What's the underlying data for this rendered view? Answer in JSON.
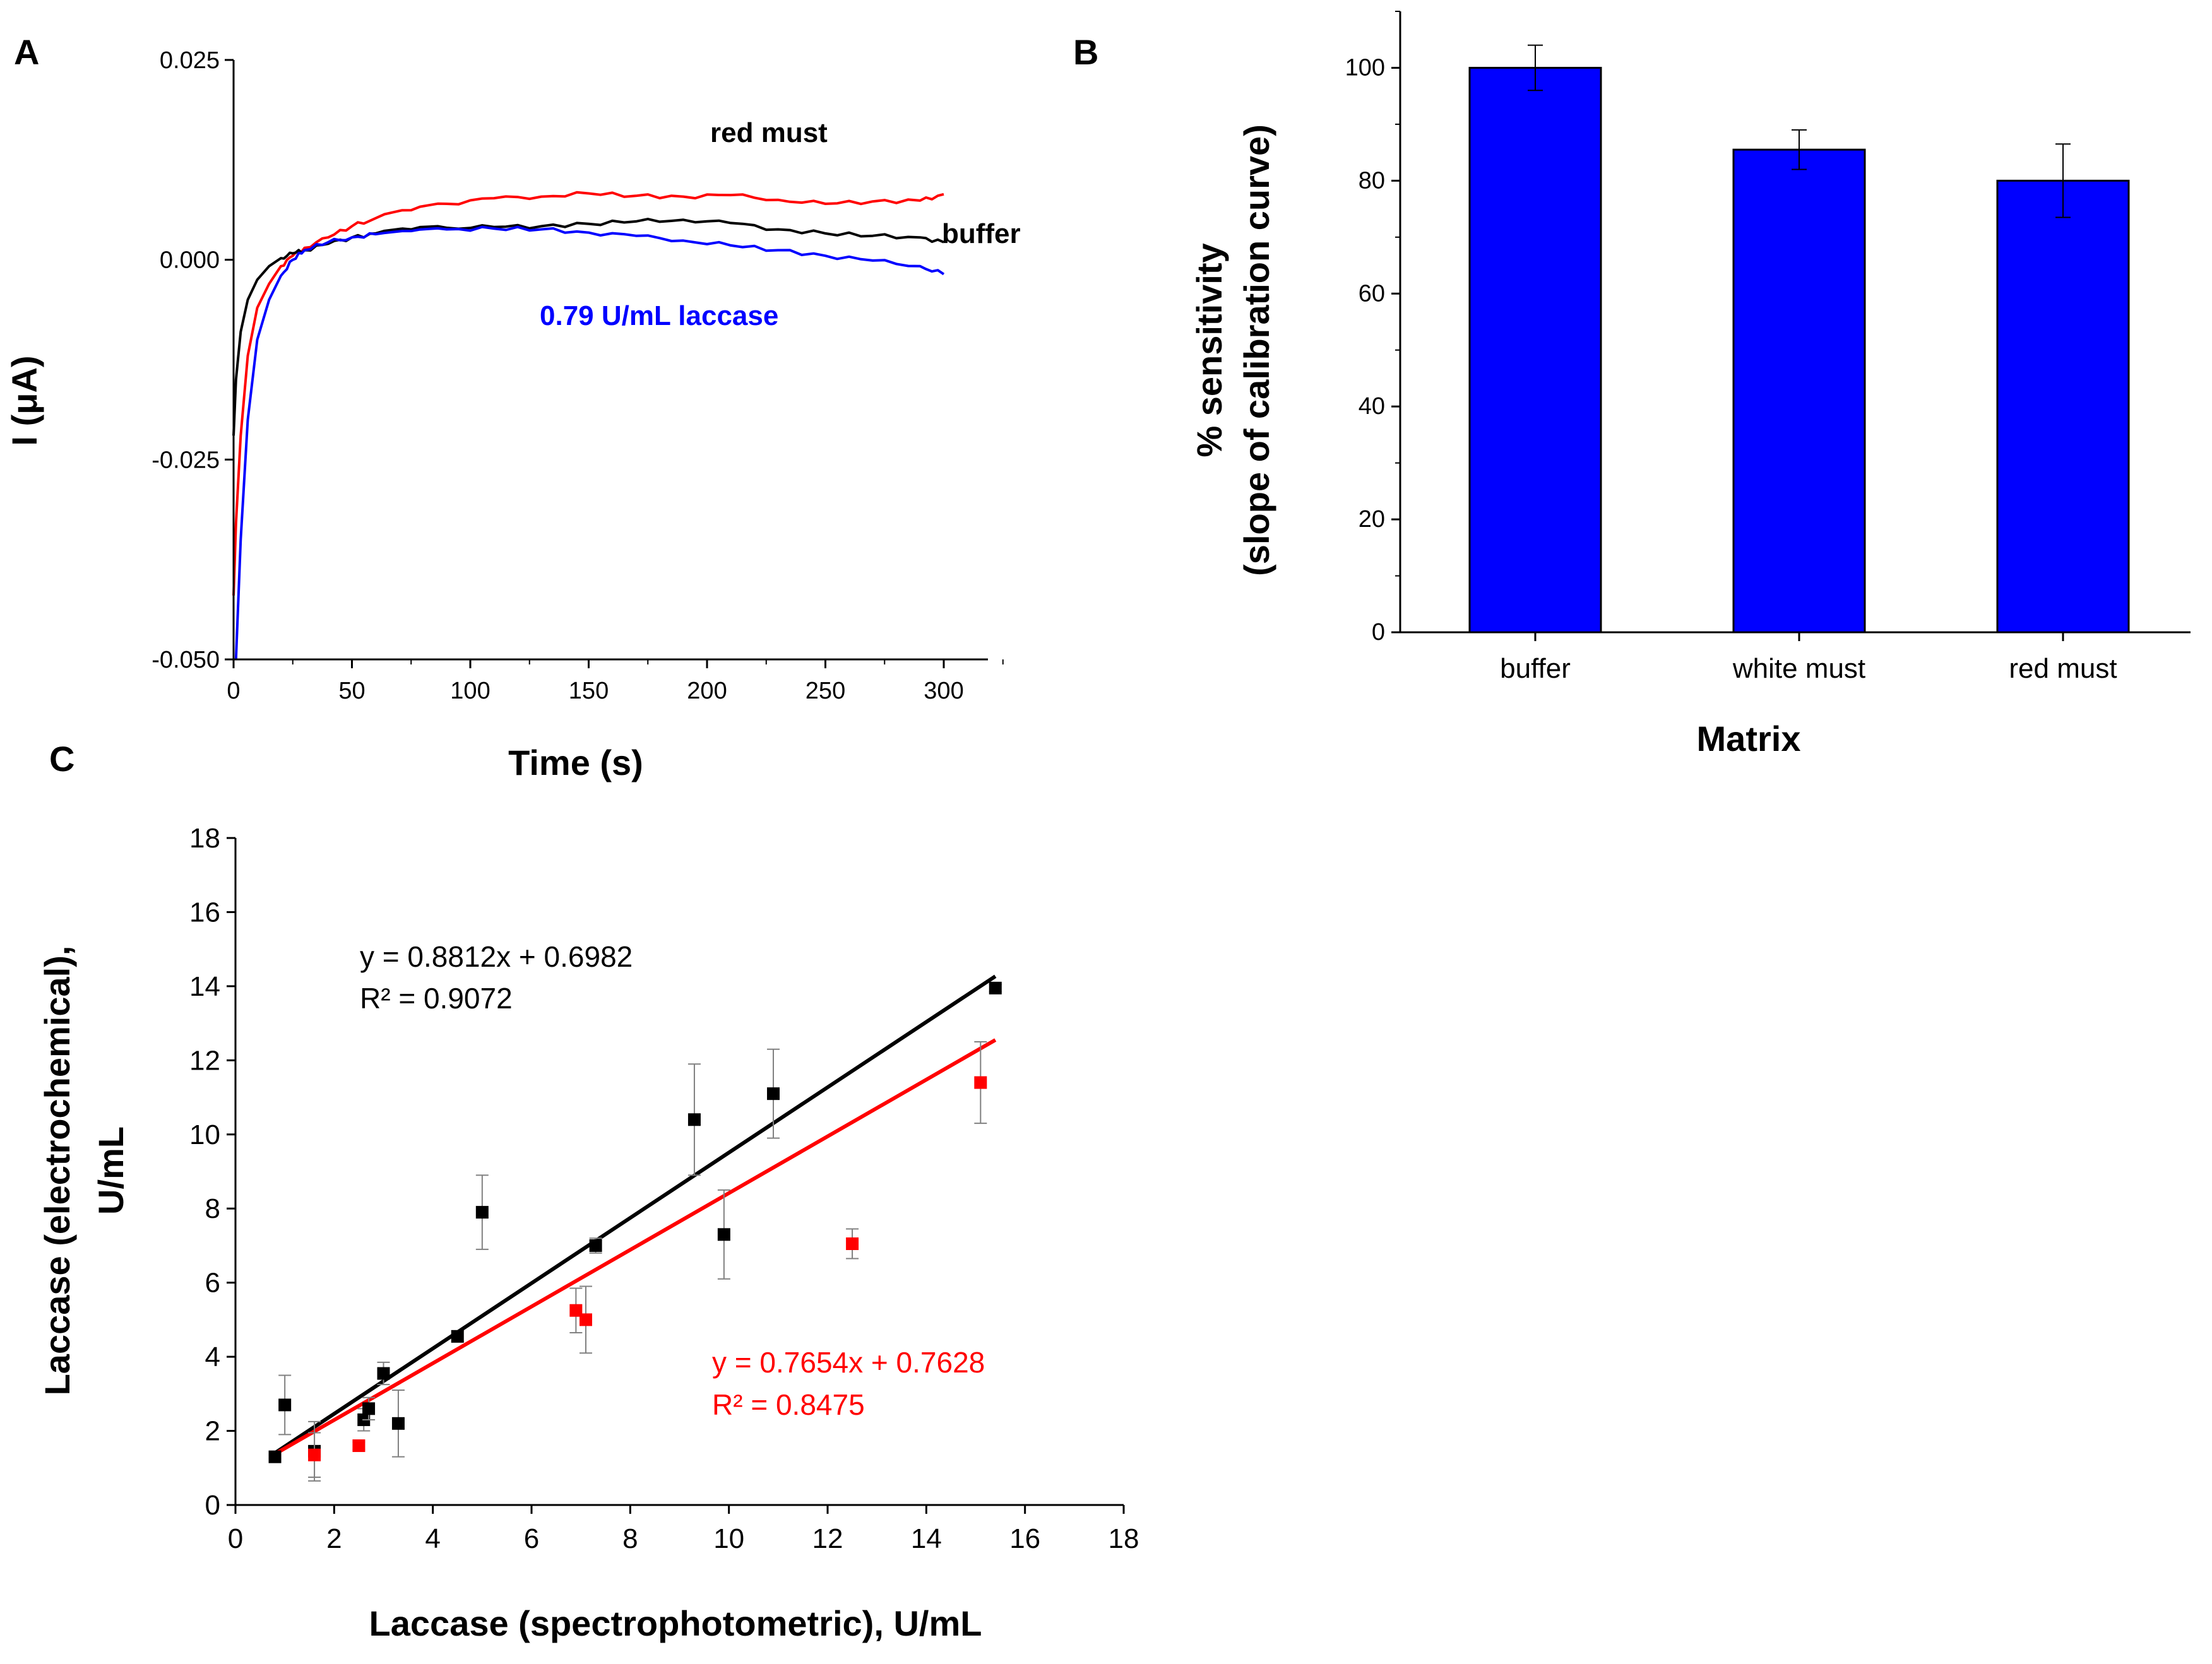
{
  "panel_labels": {
    "a": "A",
    "b": "B",
    "c": "C"
  },
  "colors": {
    "red": "#ff0000",
    "black": "#000000",
    "blue": "#0000ff",
    "bar": "#0000ff",
    "errbar": "#808080"
  },
  "chart_data": [
    {
      "panel": "A",
      "type": "line",
      "title": "",
      "xlabel": "Time (s)",
      "ylabel": "I (μA)",
      "xlim": [
        0,
        320
      ],
      "ylim": [
        -0.05,
        0.025
      ],
      "xticks": [
        0,
        50,
        100,
        150,
        200,
        250,
        300
      ],
      "yticks": [
        -0.05,
        -0.025,
        0.0,
        0.025
      ],
      "ytick_labels": [
        "-0.050",
        "-0.025",
        "0.000",
        "0.025"
      ],
      "series": [
        {
          "name": "red must",
          "color": "#ff0000",
          "x": [
            0,
            1,
            3,
            6,
            10,
            15,
            20,
            25,
            30,
            40,
            50,
            60,
            75,
            90,
            110,
            130,
            150,
            170,
            190,
            210,
            230,
            250,
            270,
            290,
            300
          ],
          "y": [
            -0.042,
            -0.033,
            -0.022,
            -0.012,
            -0.006,
            -0.003,
            -0.0008,
            0.0005,
            0.0015,
            0.0028,
            0.0042,
            0.0052,
            0.0062,
            0.007,
            0.0077,
            0.0079,
            0.0083,
            0.008,
            0.0079,
            0.0081,
            0.0075,
            0.007,
            0.0073,
            0.0074,
            0.0082
          ]
        },
        {
          "name": "buffer",
          "color": "#000000",
          "x": [
            0,
            1,
            3,
            6,
            10,
            15,
            20,
            25,
            30,
            40,
            50,
            60,
            75,
            90,
            110,
            130,
            150,
            170,
            190,
            210,
            230,
            250,
            270,
            290,
            300
          ],
          "y": [
            -0.022,
            -0.015,
            -0.009,
            -0.005,
            -0.0025,
            -0.0008,
            0.0002,
            0.0008,
            0.0012,
            0.002,
            0.0028,
            0.0033,
            0.0038,
            0.004,
            0.0041,
            0.0042,
            0.0045,
            0.0048,
            0.005,
            0.0046,
            0.0038,
            0.0033,
            0.003,
            0.0028,
            0.0022
          ]
        },
        {
          "name": "0.79 U/mL laccase",
          "color": "#0000ff",
          "x": [
            1,
            3,
            6,
            10,
            15,
            20,
            25,
            30,
            40,
            50,
            60,
            75,
            90,
            110,
            130,
            150,
            170,
            190,
            210,
            230,
            250,
            270,
            290,
            300
          ],
          "y": [
            -0.05,
            -0.035,
            -0.02,
            -0.01,
            -0.005,
            -0.002,
            0.0,
            0.0012,
            0.0022,
            0.0028,
            0.0032,
            0.0036,
            0.0038,
            0.0039,
            0.0038,
            0.0034,
            0.003,
            0.0024,
            0.0018,
            0.0012,
            0.0005,
            -0.0001,
            -0.0008,
            -0.0018
          ]
        }
      ],
      "annotations": [
        {
          "text": "red must",
          "color": "#000000"
        },
        {
          "text": "buffer",
          "color": "#000000"
        },
        {
          "text": "0.79 U/mL laccase",
          "color": "#0000ff"
        }
      ]
    },
    {
      "panel": "B",
      "type": "bar",
      "title": "",
      "xlabel": "Matrix",
      "ylabel_line1": "% sensitivity",
      "ylabel_line2": "(slope of calibration curve)",
      "categories": [
        "buffer",
        "white must",
        "red must"
      ],
      "values": [
        100,
        85.5,
        80
      ],
      "errors": [
        4,
        3.5,
        6.5
      ],
      "ylim": [
        0,
        110
      ],
      "yticks": [
        0,
        20,
        40,
        60,
        80,
        100
      ]
    },
    {
      "panel": "C",
      "type": "scatter",
      "title": "",
      "xlabel": "Laccase (spectrophotometric), U/mL",
      "ylabel_line1": "Laccase (electrochemical),",
      "ylabel_line2": "U/mL",
      "xlim": [
        0,
        18
      ],
      "ylim": [
        0,
        18
      ],
      "xticks": [
        0,
        2,
        4,
        6,
        8,
        10,
        12,
        14,
        16,
        18
      ],
      "yticks": [
        0,
        2,
        4,
        6,
        8,
        10,
        12,
        14,
        16,
        18
      ],
      "series": [
        {
          "name": "black",
          "color": "#000000",
          "points": [
            {
              "x": 0.8,
              "y": 1.3,
              "err": 0.05
            },
            {
              "x": 1.0,
              "y": 2.7,
              "err": 0.8
            },
            {
              "x": 1.6,
              "y": 1.45,
              "err": 0.8
            },
            {
              "x": 2.6,
              "y": 2.3,
              "err": 0.3
            },
            {
              "x": 2.7,
              "y": 2.6,
              "err": 0.3
            },
            {
              "x": 3.0,
              "y": 3.55,
              "err": 0.3
            },
            {
              "x": 3.3,
              "y": 2.2,
              "err": 0.9
            },
            {
              "x": 4.5,
              "y": 4.55,
              "err": 0.15
            },
            {
              "x": 5.0,
              "y": 7.9,
              "err": 1.0
            },
            {
              "x": 7.3,
              "y": 7.0,
              "err": 0.2
            },
            {
              "x": 9.3,
              "y": 10.4,
              "err": 1.5
            },
            {
              "x": 9.9,
              "y": 7.3,
              "err": 1.2
            },
            {
              "x": 10.9,
              "y": 11.1,
              "err": 1.2
            },
            {
              "x": 15.4,
              "y": 13.95,
              "err": 0.1
            }
          ],
          "fit": {
            "slope": 0.8812,
            "intercept": 0.6982,
            "x_range": [
              0.8,
              15.4
            ],
            "equation": "y = 0.8812x + 0.6982",
            "r2": "R² = 0.9072"
          }
        },
        {
          "name": "red",
          "color": "#ff0000",
          "points": [
            {
              "x": 1.6,
              "y": 1.35,
              "err": 0.6
            },
            {
              "x": 2.5,
              "y": 1.6,
              "err": 0.1
            },
            {
              "x": 6.9,
              "y": 5.25,
              "err": 0.6
            },
            {
              "x": 7.1,
              "y": 5.0,
              "err": 0.9
            },
            {
              "x": 12.5,
              "y": 7.05,
              "err": 0.4
            },
            {
              "x": 15.1,
              "y": 11.4,
              "err": 1.1
            }
          ],
          "fit": {
            "slope": 0.7654,
            "intercept": 0.7628,
            "x_range": [
              0.8,
              15.4
            ],
            "equation": "y = 0.7654x + 0.7628",
            "r2": "R² = 0.8475"
          }
        }
      ]
    }
  ]
}
